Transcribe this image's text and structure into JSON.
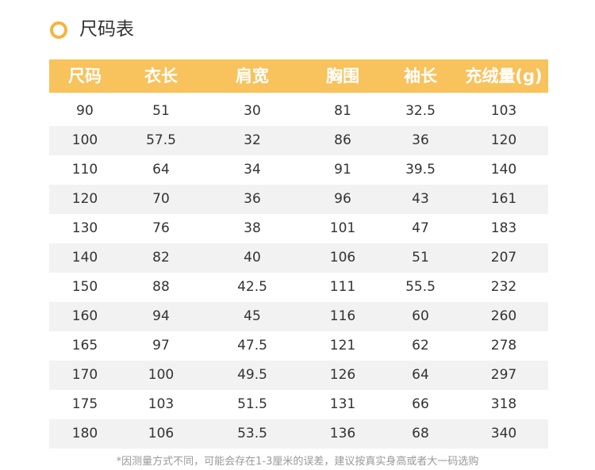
{
  "title": "尺码表",
  "table": {
    "header": [
      "尺码",
      "衣长",
      "肩宽",
      "胸围",
      "袖长",
      "充绒量(g)"
    ],
    "rows": [
      [
        "90",
        "51",
        "30",
        "81",
        "32.5",
        "103"
      ],
      [
        "100",
        "57.5",
        "32",
        "86",
        "36",
        "120"
      ],
      [
        "110",
        "64",
        "34",
        "91",
        "39.5",
        "140"
      ],
      [
        "120",
        "70",
        "36",
        "96",
        "43",
        "161"
      ],
      [
        "130",
        "76",
        "38",
        "101",
        "47",
        "183"
      ],
      [
        "140",
        "82",
        "40",
        "106",
        "51",
        "207"
      ],
      [
        "150",
        "88",
        "42.5",
        "111",
        "55.5",
        "232"
      ],
      [
        "160",
        "94",
        "45",
        "116",
        "60",
        "260"
      ],
      [
        "165",
        "97",
        "47.5",
        "121",
        "62",
        "278"
      ],
      [
        "170",
        "100",
        "49.5",
        "126",
        "64",
        "297"
      ],
      [
        "175",
        "103",
        "51.5",
        "131",
        "66",
        "318"
      ],
      [
        "180",
        "106",
        "53.5",
        "136",
        "68",
        "340"
      ]
    ]
  },
  "note": "*因测量方式不同，可能会存在1-3厘米的误差，建议按真实身高或者大一码选购"
}
